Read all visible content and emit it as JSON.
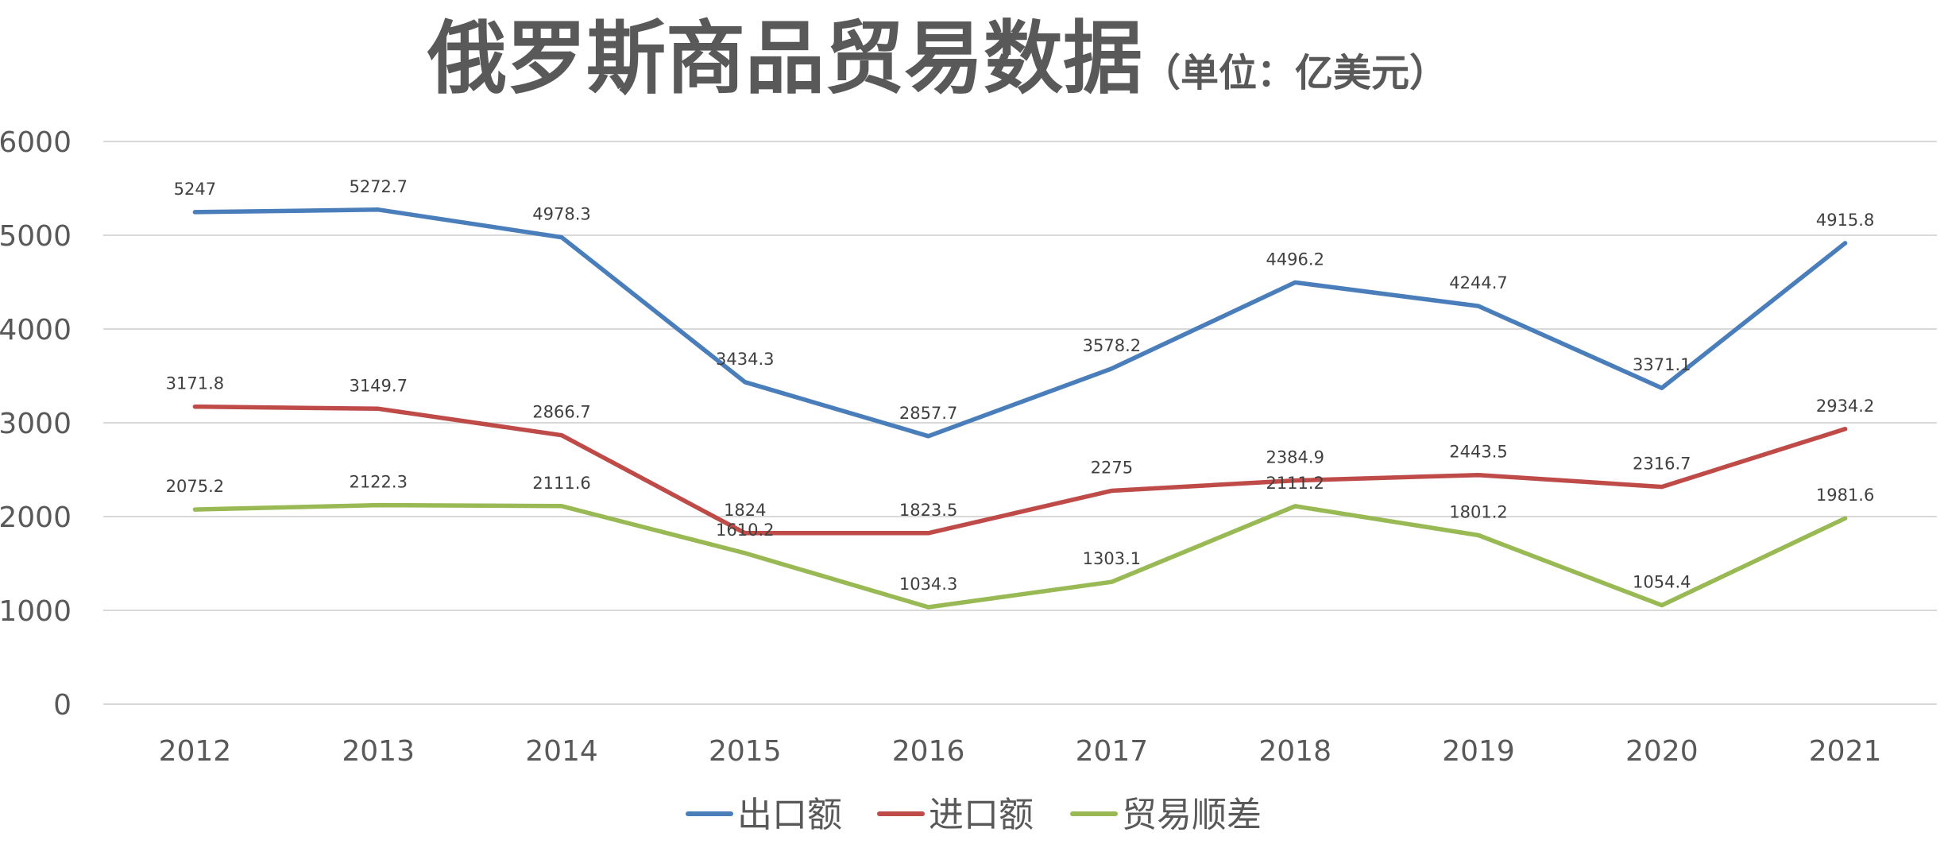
{
  "chart_data": {
    "type": "line",
    "title": "俄罗斯商品贸易数据",
    "subtitle": "（单位：亿美元）",
    "xlabel": "",
    "ylabel": "",
    "categories": [
      "2012",
      "2013",
      "2014",
      "2015",
      "2016",
      "2017",
      "2018",
      "2019",
      "2020",
      "2021"
    ],
    "ylim": [
      0,
      6000
    ],
    "yticks": [
      0,
      1000,
      2000,
      3000,
      4000,
      5000,
      6000
    ],
    "grid": true,
    "legend_position": "bottom",
    "series": [
      {
        "name": "出口额",
        "color": "#4a7ebb",
        "values": [
          5247,
          5272.7,
          4978.3,
          3434.3,
          2857.7,
          3578.2,
          4496.2,
          4244.7,
          3371.1,
          4915.8
        ],
        "labels": [
          "5247",
          "5272.7",
          "4978.3",
          "3434.3",
          "2857.7",
          "3578.2",
          "4496.2",
          "4244.7",
          "3371.1",
          "4915.8"
        ]
      },
      {
        "name": "进口额",
        "color": "#be4b48",
        "values": [
          3171.8,
          3149.7,
          2866.7,
          1824,
          1823.5,
          2275,
          2384.9,
          2443.5,
          2316.7,
          2934.2
        ],
        "labels": [
          "3171.8",
          "3149.7",
          "2866.7",
          "1824",
          "1823.5",
          "2275",
          "2384.9",
          "2443.5",
          "2316.7",
          "2934.2"
        ]
      },
      {
        "name": "贸易顺差",
        "color": "#98b954",
        "values": [
          2075.2,
          2122.3,
          2111.6,
          1610.2,
          1034.3,
          1303.1,
          2111.2,
          1801.2,
          1054.4,
          1981.6
        ],
        "labels": [
          "2075.2",
          "2122.3",
          "2111.6",
          "1610.2",
          "1034.3",
          "1303.1",
          "2111.2",
          "1801.2",
          "1054.4",
          "1981.6"
        ]
      }
    ]
  }
}
